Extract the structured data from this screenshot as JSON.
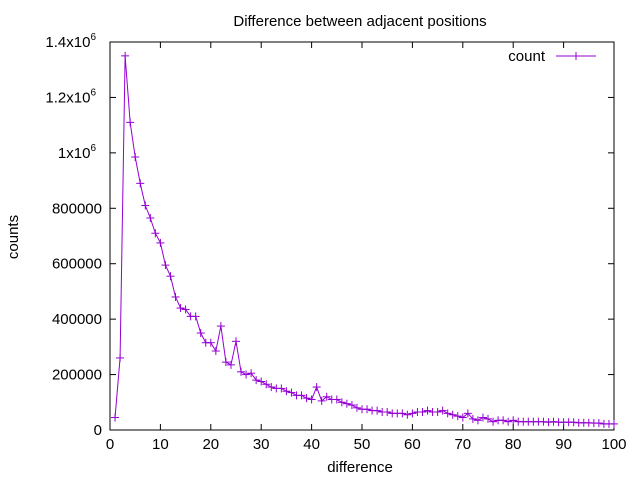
{
  "chart_data": {
    "type": "line",
    "title": "Difference between adjacent positions",
    "xlabel": "difference",
    "ylabel": "counts",
    "xlim": [
      0,
      100
    ],
    "ylim": [
      0,
      1400000
    ],
    "grid": false,
    "legend_position": "top-right",
    "series_color": "#9400d3",
    "marker": "plus",
    "x_ticks": [
      {
        "value": 0,
        "label": "0"
      },
      {
        "value": 10,
        "label": "10"
      },
      {
        "value": 20,
        "label": "20"
      },
      {
        "value": 30,
        "label": "30"
      },
      {
        "value": 40,
        "label": "40"
      },
      {
        "value": 50,
        "label": "50"
      },
      {
        "value": 60,
        "label": "60"
      },
      {
        "value": 70,
        "label": "70"
      },
      {
        "value": 80,
        "label": "80"
      },
      {
        "value": 90,
        "label": "90"
      },
      {
        "value": 100,
        "label": "100"
      }
    ],
    "y_ticks": [
      {
        "value": 0,
        "label": "0",
        "sup": ""
      },
      {
        "value": 200000,
        "label": "200000",
        "sup": ""
      },
      {
        "value": 400000,
        "label": "400000",
        "sup": ""
      },
      {
        "value": 600000,
        "label": "600000",
        "sup": ""
      },
      {
        "value": 800000,
        "label": "800000",
        "sup": ""
      },
      {
        "value": 1000000,
        "label": "1x10",
        "sup": "6"
      },
      {
        "value": 1200000,
        "label": "1.2x10",
        "sup": "6"
      },
      {
        "value": 1400000,
        "label": "1.4x10",
        "sup": "6"
      }
    ],
    "series": [
      {
        "name": "count",
        "x": [
          1,
          2,
          3,
          4,
          5,
          6,
          7,
          8,
          9,
          10,
          11,
          12,
          13,
          14,
          15,
          16,
          17,
          18,
          19,
          20,
          21,
          22,
          23,
          24,
          25,
          26,
          27,
          28,
          29,
          30,
          31,
          32,
          33,
          34,
          35,
          36,
          37,
          38,
          39,
          40,
          41,
          42,
          43,
          44,
          45,
          46,
          47,
          48,
          49,
          50,
          51,
          52,
          53,
          54,
          55,
          56,
          57,
          58,
          59,
          60,
          61,
          62,
          63,
          64,
          65,
          66,
          67,
          68,
          69,
          70,
          71,
          72,
          73,
          74,
          75,
          76,
          77,
          78,
          79,
          80,
          81,
          82,
          83,
          84,
          85,
          86,
          87,
          88,
          89,
          90,
          91,
          92,
          93,
          94,
          95,
          96,
          97,
          98,
          99,
          100
        ],
        "y": [
          45000,
          260000,
          1350000,
          1110000,
          985000,
          890000,
          810000,
          765000,
          710000,
          675000,
          595000,
          555000,
          480000,
          440000,
          435000,
          410000,
          410000,
          350000,
          315000,
          315000,
          285000,
          375000,
          245000,
          235000,
          320000,
          210000,
          200000,
          205000,
          180000,
          175000,
          165000,
          155000,
          150000,
          150000,
          140000,
          135000,
          125000,
          125000,
          115000,
          110000,
          155000,
          105000,
          120000,
          110000,
          110000,
          100000,
          95000,
          90000,
          80000,
          75000,
          75000,
          70000,
          70000,
          65000,
          65000,
          60000,
          60000,
          60000,
          55000,
          60000,
          65000,
          65000,
          70000,
          65000,
          65000,
          70000,
          60000,
          55000,
          50000,
          45000,
          60000,
          40000,
          35000,
          45000,
          40000,
          30000,
          35000,
          35000,
          30000,
          35000,
          30000,
          30000,
          30000,
          30000,
          30000,
          30000,
          28000,
          30000,
          28000,
          28000,
          28000,
          28000,
          26000,
          26000,
          26000,
          25000,
          25000,
          22000,
          22000,
          22000
        ]
      }
    ]
  }
}
